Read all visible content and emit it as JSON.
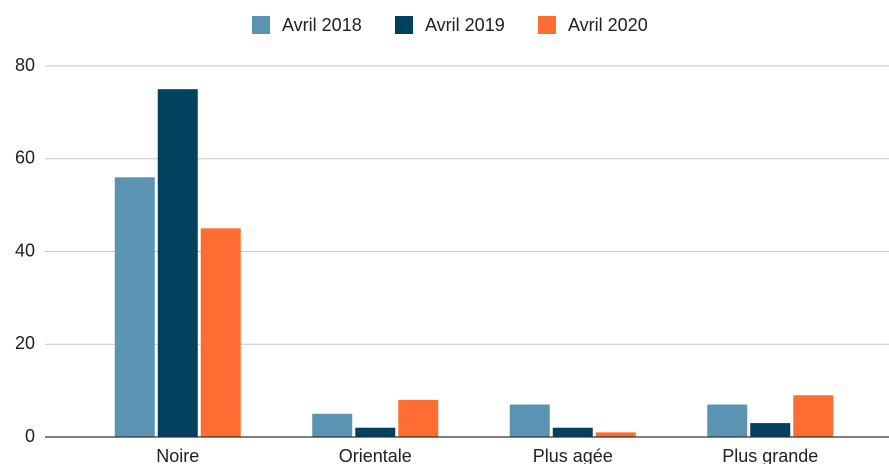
{
  "chart_data": {
    "type": "bar",
    "categories": [
      "Noire",
      "Orientale",
      "Plus agée",
      "Plus grande"
    ],
    "series": [
      {
        "name": "Avril 2018",
        "color": "#5b93b2",
        "values": [
          56,
          5,
          7,
          7
        ]
      },
      {
        "name": "Avril 2019",
        "color": "#00425e",
        "values": [
          75,
          2,
          2,
          3
        ]
      },
      {
        "name": "Avril 2020",
        "color": "#ff6d33",
        "values": [
          45,
          8,
          1,
          9
        ]
      }
    ],
    "ylim": [
      0,
      80
    ],
    "yticks": [
      0,
      20,
      40,
      60,
      80
    ],
    "grid": true,
    "legend": "top"
  }
}
